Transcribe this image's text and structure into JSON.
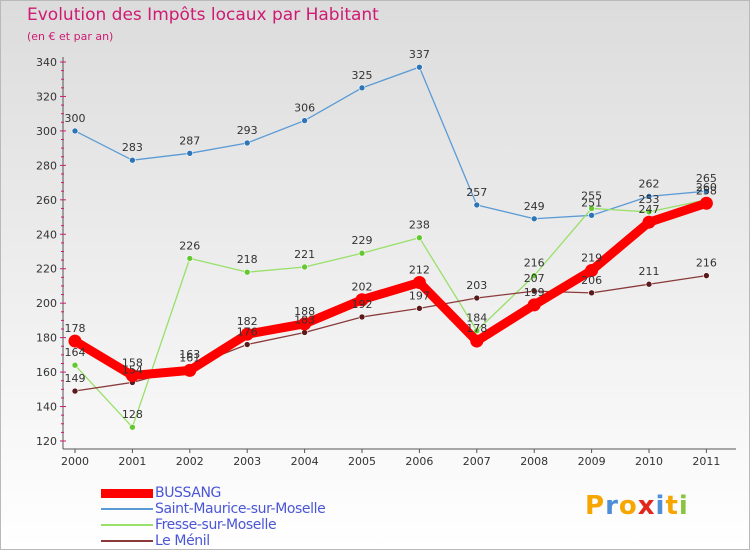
{
  "chart_data": {
    "type": "line",
    "title": "Evolution des Impôts locaux par Habitant",
    "subtitle": "(en € et par an)",
    "xlabel": "",
    "ylabel": "",
    "categories": [
      "2000",
      "2001",
      "2002",
      "2003",
      "2004",
      "2005",
      "2006",
      "2007",
      "2008",
      "2009",
      "2010",
      "2011"
    ],
    "ylim": [
      120,
      340
    ],
    "yticks": [
      120,
      140,
      160,
      180,
      200,
      220,
      240,
      260,
      280,
      300,
      320,
      340
    ],
    "grid": false,
    "legend_position": "bottom-left",
    "series": [
      {
        "name": "Saint-Maurice-sur-Moselle",
        "color": "#5b9bd5",
        "marker": "#2e75b6",
        "values": [
          300,
          283,
          287,
          293,
          306,
          325,
          337,
          257,
          249,
          251,
          262,
          265
        ],
        "labels": [
          "300",
          "283",
          "287",
          "293",
          "306",
          "325",
          "337",
          "257",
          "249",
          "251",
          "262",
          "265"
        ]
      },
      {
        "name": "Fresse-sur-Moselle",
        "color": "#98e06a",
        "marker": "#64c832",
        "values": [
          164,
          128,
          226,
          218,
          221,
          229,
          238,
          184,
          216,
          255,
          253,
          260
        ],
        "labels": [
          "164",
          "128",
          "226",
          "218",
          "221",
          "229",
          "238",
          "184",
          "216",
          "255",
          "253",
          "260"
        ]
      },
      {
        "name": "Le Ménil",
        "color": "#8b3a3a",
        "marker": "#5a1a1a",
        "values": [
          149,
          154,
          163,
          176,
          183,
          192,
          197,
          203,
          207,
          206,
          211,
          216
        ],
        "labels": [
          "149",
          "154",
          "163",
          "176",
          "183",
          "192",
          "197",
          "203",
          "207",
          "206",
          "211",
          "216"
        ]
      },
      {
        "name": "BUSSANG",
        "color": "#ff0000",
        "marker": "#ff0000",
        "values": [
          178,
          158,
          161,
          182,
          188,
          202,
          212,
          178,
          199,
          219,
          247,
          258
        ],
        "labels": [
          "178",
          "158",
          "161",
          "182",
          "188",
          "202",
          "212",
          "178",
          "199",
          "219",
          "247",
          "258"
        ]
      }
    ],
    "legend": [
      "BUSSANG",
      "Saint-Maurice-sur-Moselle",
      "Fresse-sur-Moselle",
      "Le Ménil"
    ]
  },
  "brand": {
    "text": "Proxiti",
    "letters": [
      "P",
      "r",
      "o",
      "x",
      "i",
      "t",
      "i"
    ],
    "colors": [
      "#f7a600",
      "#4f8fd8",
      "#f7a600",
      "#e2261c",
      "#4f8fd8",
      "#f7a600",
      "#8ac43f"
    ]
  }
}
